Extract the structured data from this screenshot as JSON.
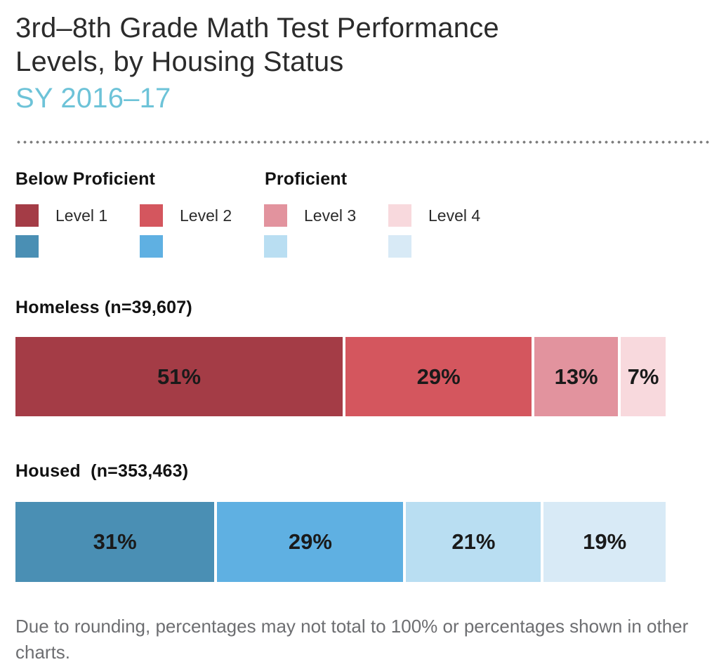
{
  "header": {
    "title_line1": "3rd–8th Grade Math Test Performance",
    "title_line2": "Levels, by Housing Status",
    "subtitle": "SY 2016–17"
  },
  "legend": {
    "below_proficient_heading": "Below Proficient",
    "proficient_heading": "Proficient",
    "levels": [
      {
        "label": "Level 1",
        "homeless_color": "#a43c46",
        "housed_color": "#4a8fb4"
      },
      {
        "label": "Level 2",
        "homeless_color": "#d4565e",
        "housed_color": "#5fb0e2"
      },
      {
        "label": "Level 3",
        "homeless_color": "#e2939e",
        "housed_color": "#b9def2"
      },
      {
        "label": "Level 4",
        "homeless_color": "#f8d9dd",
        "housed_color": "#d8eaf6"
      }
    ]
  },
  "chart_data": {
    "type": "bar",
    "variant": "horizontal-stacked-100-percent",
    "title": "3rd–8th Grade Math Test Performance Levels, by Housing Status",
    "subtitle": "SY 2016–17",
    "categories": [
      "Level 1",
      "Level 2",
      "Level 3",
      "Level 4"
    ],
    "legend_groups": [
      {
        "label": "Below Proficient",
        "levels": [
          "Level 1",
          "Level 2"
        ]
      },
      {
        "label": "Proficient",
        "levels": [
          "Level 3",
          "Level 4"
        ]
      }
    ],
    "unit": "percent",
    "xlim": [
      0,
      100
    ],
    "grid": false,
    "series": [
      {
        "name": "Homeless",
        "row_label": "Homeless (n=39,607)",
        "values": [
          51,
          29,
          13,
          7
        ],
        "value_labels": [
          "51%",
          "29%",
          "13%",
          "7%"
        ],
        "colors": [
          "#a43c46",
          "#d4565e",
          "#e2939e",
          "#f8d9dd"
        ]
      },
      {
        "name": "Housed",
        "row_label": "Housed  (n=353,463)",
        "values": [
          31,
          29,
          21,
          19
        ],
        "value_labels": [
          "31%",
          "29%",
          "21%",
          "19%"
        ],
        "colors": [
          "#4a8fb4",
          "#5fb0e2",
          "#b9def2",
          "#d8eaf6"
        ]
      }
    ]
  },
  "footnote": "Due to rounding, percentages may not total to 100% or percentages shown in other charts."
}
